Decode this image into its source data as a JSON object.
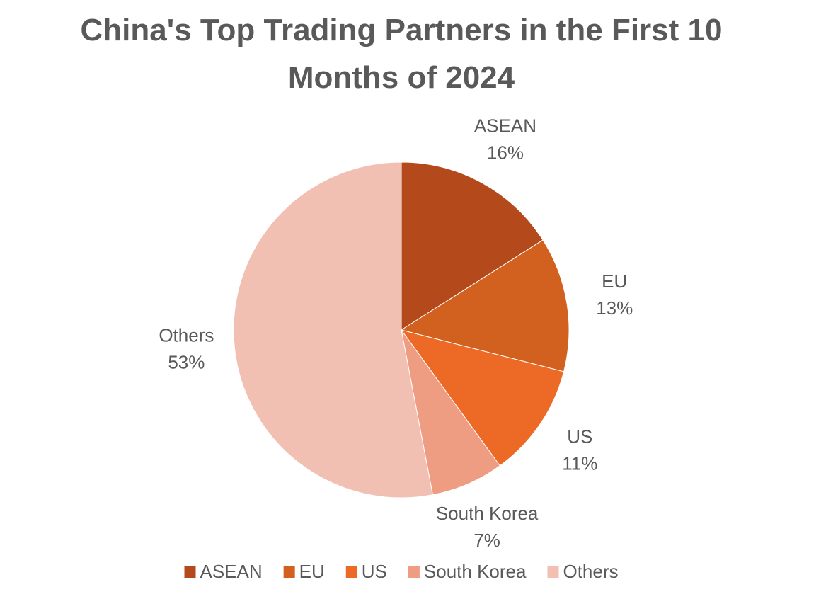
{
  "chart_data": {
    "type": "pie",
    "title": "China's Top Trading Partners in the First 10 Months of 2024",
    "categories": [
      "ASEAN",
      "EU",
      "US",
      "South Korea",
      "Others"
    ],
    "values": [
      16,
      13,
      11,
      7,
      53
    ],
    "value_labels": [
      "16%",
      "13%",
      "11%",
      "7%",
      "53%"
    ],
    "colors": [
      "#b44a1c",
      "#d2601f",
      "#ec6a26",
      "#ee9c82",
      "#f1c0b3"
    ],
    "legend": "bottom"
  }
}
